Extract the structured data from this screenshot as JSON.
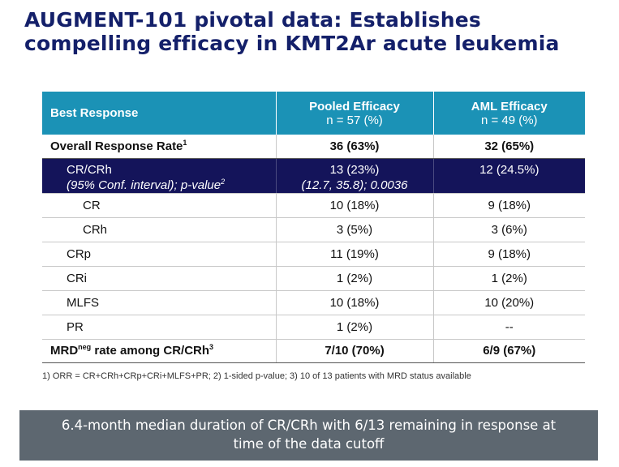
{
  "title": "AUGMENT-101 pivotal data: Establishes compelling efficacy in KMT2Ar acute leukemia",
  "colors": {
    "title": "#14206a",
    "header_bg": "#1b92b6",
    "highlight_row_bg": "#14145a",
    "banner_bg": "#5d6770"
  },
  "table": {
    "header": {
      "col1": "Best Response",
      "col2_title": "Pooled Efficacy",
      "col2_sub": "n = 57 (%)",
      "col3_title": "AML Efficacy",
      "col3_sub": "n = 49 (%)"
    },
    "orr": {
      "label": "Overall Response Rate",
      "sup": "1",
      "pooled": "36 (63%)",
      "aml": "32 (65%)"
    },
    "crcrh": {
      "label": "CR/CRh",
      "label2": "(95% Conf. interval); p-value",
      "sup": "2",
      "pooled": "13 (23%)",
      "pooled2": "(12.7, 35.8); 0.0036",
      "aml": "12 (24.5%)"
    },
    "rows": [
      {
        "label": "CR",
        "pooled": "10 (18%)",
        "aml": "9 (18%)"
      },
      {
        "label": "CRh",
        "pooled": "3 (5%)",
        "aml": "3 (6%)"
      },
      {
        "label": "CRp",
        "pooled": "11 (19%)",
        "aml": "9 (18%)"
      },
      {
        "label": "CRi",
        "pooled": "1 (2%)",
        "aml": "1 (2%)"
      },
      {
        "label": "MLFS",
        "pooled": "10 (18%)",
        "aml": "10 (20%)"
      },
      {
        "label": "PR",
        "pooled": "1 (2%)",
        "aml": "--"
      }
    ],
    "mrd": {
      "label_pre": "MRD",
      "label_sup_neg": "neg",
      "label_post": " rate among CR/CRh",
      "sup": "3",
      "pooled": "7/10 (70%)",
      "aml": "6/9 (67%)"
    }
  },
  "footnote": "1) ORR = CR+CRh+CRp+CRi+MLFS+PR; 2) 1-sided p-value; 3) 10 of 13 patients with MRD status available",
  "banner": {
    "line1": "6.4-month median duration of CR/CRh with 6/13 remaining in response at",
    "line2": "time of the data cutoff"
  }
}
